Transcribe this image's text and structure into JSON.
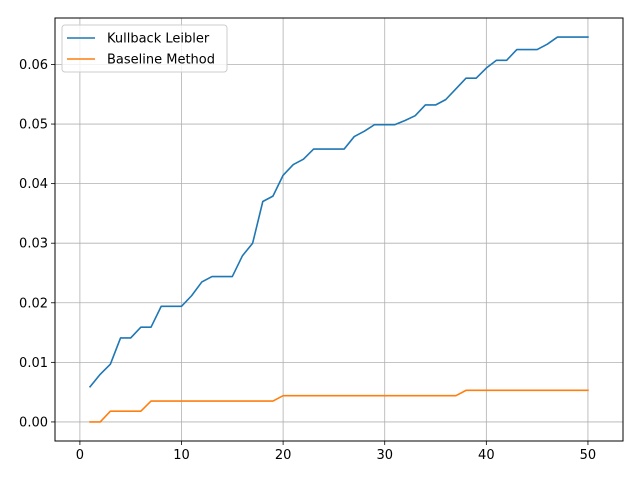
{
  "chart_data": {
    "type": "line",
    "title": "",
    "xlabel": "",
    "ylabel": "",
    "xlim": [
      -2.45,
      53.45
    ],
    "ylim": [
      -0.0032,
      0.0678
    ],
    "xticks": [
      0,
      10,
      20,
      30,
      40,
      50
    ],
    "yticks": [
      0.0,
      0.01,
      0.02,
      0.03,
      0.04,
      0.05,
      0.06
    ],
    "ytick_labels": [
      "0.00",
      "0.01",
      "0.02",
      "0.03",
      "0.04",
      "0.05",
      "0.06"
    ],
    "grid": true,
    "legend_position": "top-left",
    "x": [
      1,
      2,
      3,
      4,
      5,
      6,
      7,
      8,
      9,
      10,
      11,
      12,
      13,
      14,
      15,
      16,
      17,
      18,
      19,
      20,
      21,
      22,
      23,
      24,
      25,
      26,
      27,
      28,
      29,
      30,
      31,
      32,
      33,
      34,
      35,
      36,
      37,
      38,
      39,
      40,
      41,
      42,
      43,
      44,
      45,
      46,
      47,
      48,
      49,
      50
    ],
    "series": [
      {
        "name": "Kullback Leibler",
        "color": "#1f77b4",
        "values": [
          0.0059,
          0.008,
          0.0097,
          0.0141,
          0.0141,
          0.0159,
          0.0159,
          0.0194,
          0.0194,
          0.0194,
          0.0212,
          0.0235,
          0.0244,
          0.0244,
          0.0244,
          0.0279,
          0.03,
          0.037,
          0.0379,
          0.0414,
          0.0432,
          0.0441,
          0.0458,
          0.0458,
          0.0458,
          0.0458,
          0.0479,
          0.0488,
          0.0499,
          0.0499,
          0.0499,
          0.0506,
          0.0514,
          0.0532,
          0.0532,
          0.0541,
          0.0559,
          0.0577,
          0.0577,
          0.0594,
          0.0607,
          0.0607,
          0.0625,
          0.0625,
          0.0625,
          0.0634,
          0.0646,
          0.0646,
          0.0646,
          0.0646
        ]
      },
      {
        "name": "Baseline Method",
        "color": "#ff7f0e",
        "values": [
          0.0,
          0.0,
          0.0018,
          0.0018,
          0.0018,
          0.0018,
          0.0035,
          0.0035,
          0.0035,
          0.0035,
          0.0035,
          0.0035,
          0.0035,
          0.0035,
          0.0035,
          0.0035,
          0.0035,
          0.0035,
          0.0035,
          0.0044,
          0.0044,
          0.0044,
          0.0044,
          0.0044,
          0.0044,
          0.0044,
          0.0044,
          0.0044,
          0.0044,
          0.0044,
          0.0044,
          0.0044,
          0.0044,
          0.0044,
          0.0044,
          0.0044,
          0.0044,
          0.0053,
          0.0053,
          0.0053,
          0.0053,
          0.0053,
          0.0053,
          0.0053,
          0.0053,
          0.0053,
          0.0053,
          0.0053,
          0.0053,
          0.0053
        ]
      }
    ]
  }
}
